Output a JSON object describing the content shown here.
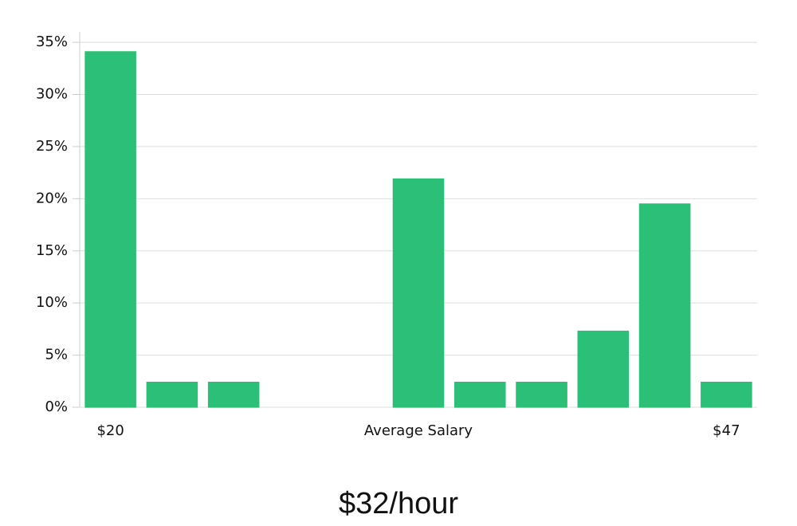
{
  "chart_data": {
    "type": "bar",
    "x_label": "Average Salary",
    "annotation": "$32/hour",
    "categories": [
      "$20",
      null,
      null,
      null,
      null,
      null,
      null,
      null,
      null,
      null,
      "$47"
    ],
    "values": [
      34.1,
      2.4,
      2.4,
      0,
      0,
      21.9,
      2.4,
      2.4,
      7.3,
      19.5,
      2.4
    ],
    "colors": [
      "#2bbf77",
      "#2bbf77",
      "#2bbf77",
      "#2bbf77",
      "#1c1c6e",
      "#2bbf77",
      "#2bbf77",
      "#2bbf77",
      "#2bbf77",
      "#2bbf77",
      "#2bbf77"
    ],
    "ylim": [
      0,
      36
    ],
    "yticks": [
      {
        "value": 0,
        "label": "0%"
      },
      {
        "value": 5,
        "label": "5%"
      },
      {
        "value": 10,
        "label": "10%"
      },
      {
        "value": 15,
        "label": "15%"
      },
      {
        "value": 20,
        "label": "20%"
      },
      {
        "value": 25,
        "label": "25%"
      },
      {
        "value": 30,
        "label": "30%"
      },
      {
        "value": 35,
        "label": "35%"
      }
    ],
    "grid": true
  }
}
